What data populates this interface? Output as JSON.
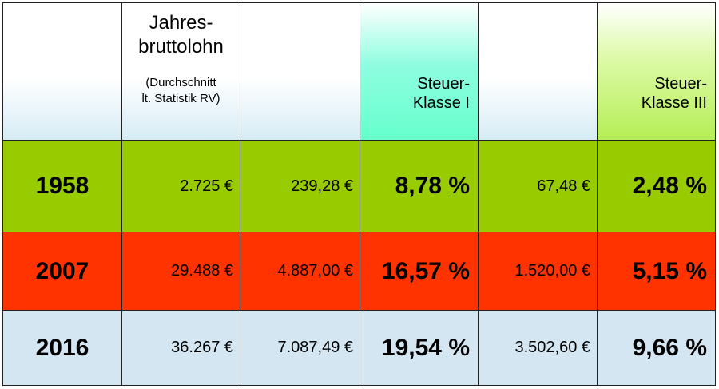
{
  "header": {
    "cells": [
      {
        "lines": []
      },
      {
        "lines": [
          "Jahres-",
          "bruttolohn"
        ],
        "note": [
          "(Durchschnitt",
          "lt. Statistik RV)"
        ]
      },
      {
        "lines": []
      },
      {
        "lines": [
          "Steuer-",
          "Klasse I"
        ]
      },
      {
        "lines": []
      },
      {
        "lines": [
          "Steuer-",
          "Klasse III"
        ]
      }
    ]
  },
  "table": {
    "rows": [
      [
        "1958",
        "2.725 €",
        "239,28 €",
        "8,78 %",
        "67,48 €",
        "2,48 %"
      ],
      [
        "2007",
        "29.488 €",
        "4.887,00 €",
        "16,57 %",
        "1.520,00 €",
        "5,15 %"
      ],
      [
        "2016",
        "36.267 €",
        "7.087,49 €",
        "19,54 %",
        "3.502,60 €",
        "9,66 %"
      ]
    ]
  }
}
